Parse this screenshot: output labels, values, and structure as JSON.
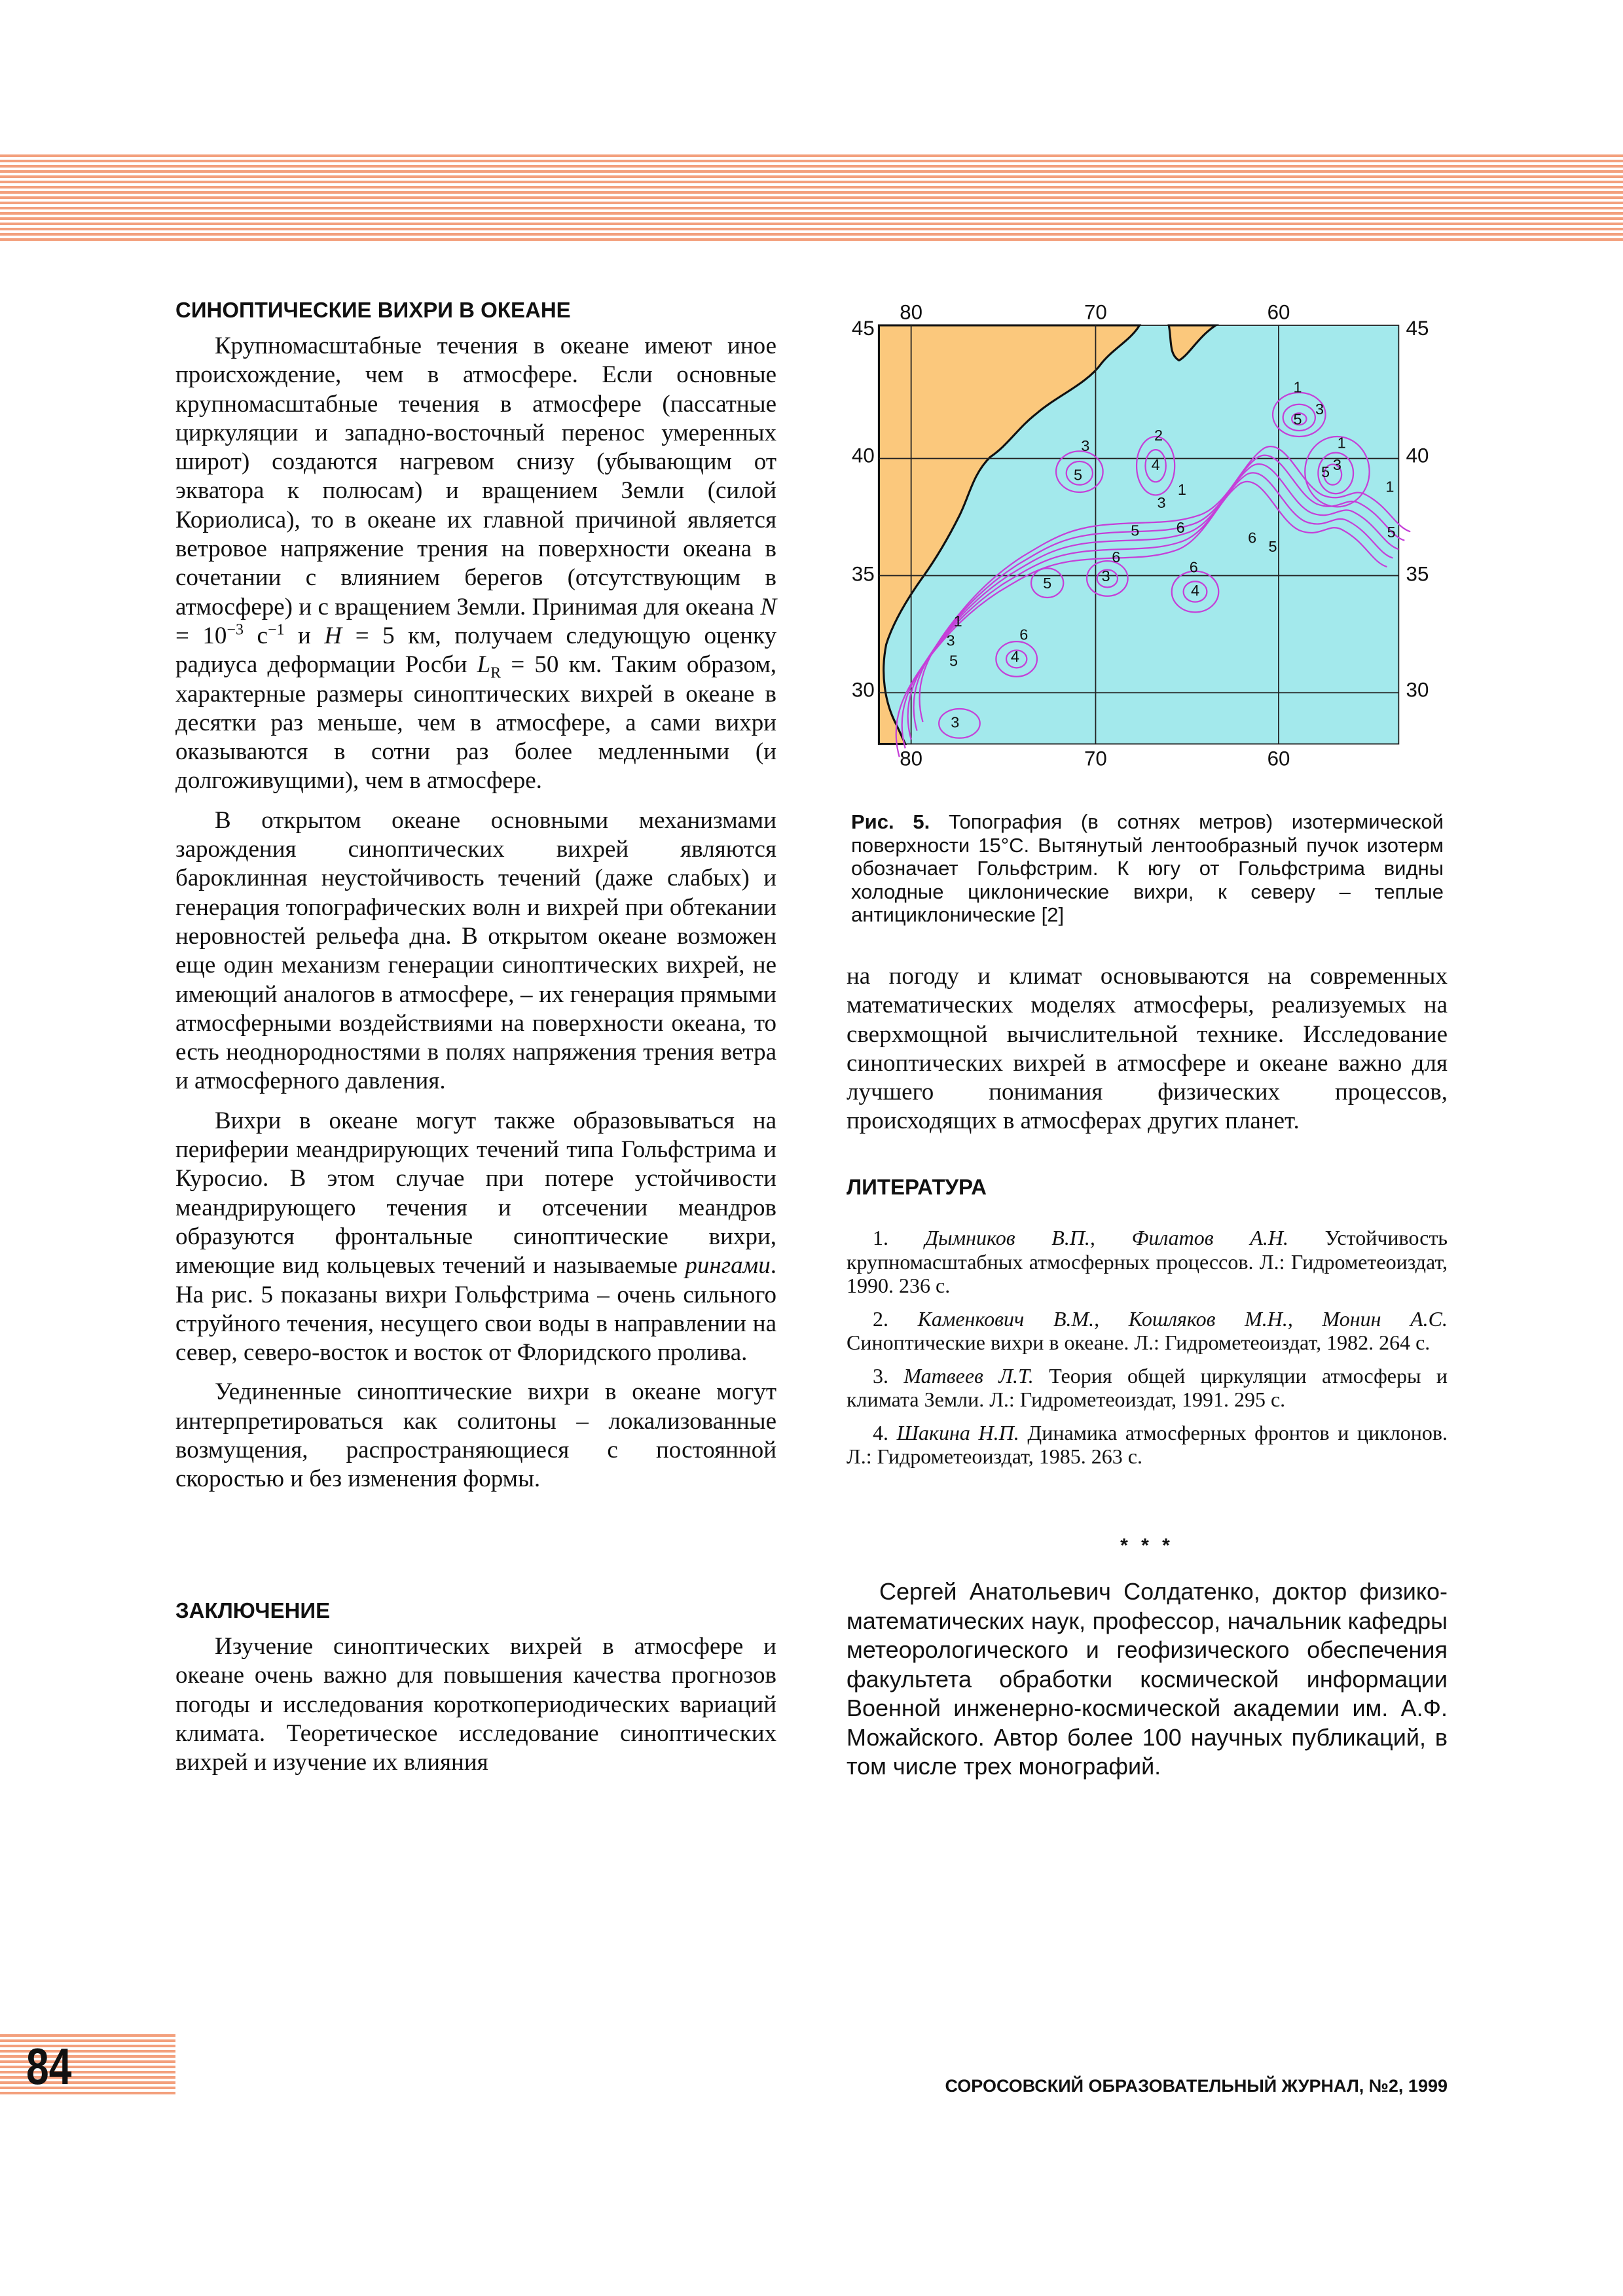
{
  "article": {
    "sections": [
      {
        "heading": "СИНОПТИЧЕСКИЕ ВИХРИ В ОКЕАНЕ",
        "paragraphs": [
          [
            "Крупномасштабные течения в океане имеют иное происхождение, чем в атмосфере. Если основные крупномасштабные течения в атмосфере (пассатные циркуляции и западно-восточный перенос умеренных широт) создаются нагревом снизу (убывающим от экватора к полюсам) и вращением Земли (силой Кориолиса), то в океане их главной причиной является ветровое напряжение трения на поверхности океана в сочетании с влиянием берегов (отсутствующим в атмосфере) и с вращением Земли. Принимая для океана ",
            "N",
            " = 10",
            "−3",
            " с",
            "−1",
            " и ",
            "H",
            " = 5 км, получаем следующую оценку радиуса деформации Росби ",
            "L",
            "R",
            " = 50 км. Таким образом, характерные размеры синоптических вихрей в океане в десятки раз меньше, чем в атмосфере, а сами вихри оказываются в сотни раз более медленными (и долгоживущими), чем в атмосфере."
          ],
          [
            "В открытом океане основными механизмами зарождения синоптических вихрей являются бароклинная неустойчивость течений (даже слабых) и генерация топографических волн и вихрей при обтекании неровностей рельефа дна. В открытом океане возможен еще один механизм генерации синоптических вихрей, не имеющий аналогов в атмосфере, – их генерация прямыми атмосферными воздействиями на поверхности океана, то есть неоднородностями в полях напряжения трения ветра и атмосферного давления."
          ],
          [
            "Вихри в океане могут также образовываться на периферии меандрирующих течений типа Гольфстрима и Куросио. В этом случае при потере устойчивости меандрирующего течения и отсечении меандров образуются фронтальные синоптические вихри, имеющие вид кольцевых течений и называемые ",
            "рингами",
            ". На рис. 5 показаны вихри Гольфстрима – очень сильного струйного течения, несущего свои воды в направлении на север, северо-восток и восток от Флоридского пролива."
          ],
          [
            "Уединенные синоптические вихри в океане могут интерпретироваться как солитоны – локализованные возмущения, распространяющиеся с постоянной скоростью и без изменения формы."
          ]
        ]
      },
      {
        "heading": "ЗАКЛЮЧЕНИЕ",
        "paragraphs": [
          [
            "Изучение синоптических вихрей в атмосфере и океане очень важно для повышения качества прогнозов погоды и исследования короткопериодических вариаций климата. Теоретическое исследование синоптических вихрей и изучение их влияния",
            "на погоду и климат основываются на современных математических моделях атмосферы, реализуемых на сверхмощной вычислительной технике. Исследование синоптических вихрей в атмосфере и океане важно для лучшего понимания физических процессов, происходящих в атмосферах других планет."
          ]
        ]
      }
    ]
  },
  "figure": {
    "lon_labels_top": [
      "80",
      "70",
      "60"
    ],
    "lon_labels_bottom": [
      "80",
      "70",
      "60"
    ],
    "lat_labels_left": [
      "45",
      "40",
      "35",
      "30"
    ],
    "lat_labels_right": [
      "45",
      "40",
      "35",
      "30"
    ],
    "contour_labels": [
      "1",
      "5",
      "3",
      "3",
      "2",
      "5",
      "4",
      "1",
      "5",
      "3",
      "1",
      "1",
      "3",
      "5",
      "5",
      "6",
      "6",
      "5",
      "6",
      "6",
      "3",
      "5",
      "4",
      "1",
      "3",
      "6",
      "5",
      "4",
      "3"
    ],
    "caption": {
      "label": "Рис. 5.",
      "text": "Топография (в сотнях метров) изотермической поверхности 15°С. Вытянутый лентообразный пучок изотерм обозначает Гольфстрим. К югу от Гольфстрима видны холодные циклонические вихри, к северу – теплые антициклонические [2]"
    }
  },
  "references": {
    "heading": "ЛИТЕРАТУРА",
    "items": [
      {
        "number": "1.",
        "authors": "Дымников В.П., Филатов А.Н.",
        "text": "Устойчивость крупномасштабных атмосферных процессов. Л.: Гидрометеоиздат, 1990. 236 с."
      },
      {
        "number": "2.",
        "authors": "Каменкович В.М., Кошляков М.Н., Монин А.С.",
        "text": "Синоптические вихри в океане. Л.: Гидрометеоиздат, 1982. 264 с."
      },
      {
        "number": "3.",
        "authors": "Матвеев Л.Т.",
        "text": "Теория общей циркуляции атмосферы и климата Земли. Л.: Гидрометеоиздат, 1991. 295 с."
      },
      {
        "number": "4.",
        "authors": "Шакина Н.П.",
        "text": "Динамика атмосферных фронтов и циклонов. Л.: Гидрометеоиздат, 1985. 263 с."
      }
    ]
  },
  "separator": "* * *",
  "author_note": "Сергей Анатольевич Солдатенко, доктор физико-математических наук, профессор, начальник кафедры метеорологического и геофизического обеспечения факультета обработки космической информации Военной инженерно-космической академии им. А.Ф. Можайского. Автор более 100 научных публикаций, в том числе трех монографий.",
  "footer": {
    "page_number": "84",
    "journal": "СОРОСОВСКИЙ ОБРАЗОВАТЕЛЬНЫЙ ЖУРНАЛ, №2, 1999"
  }
}
